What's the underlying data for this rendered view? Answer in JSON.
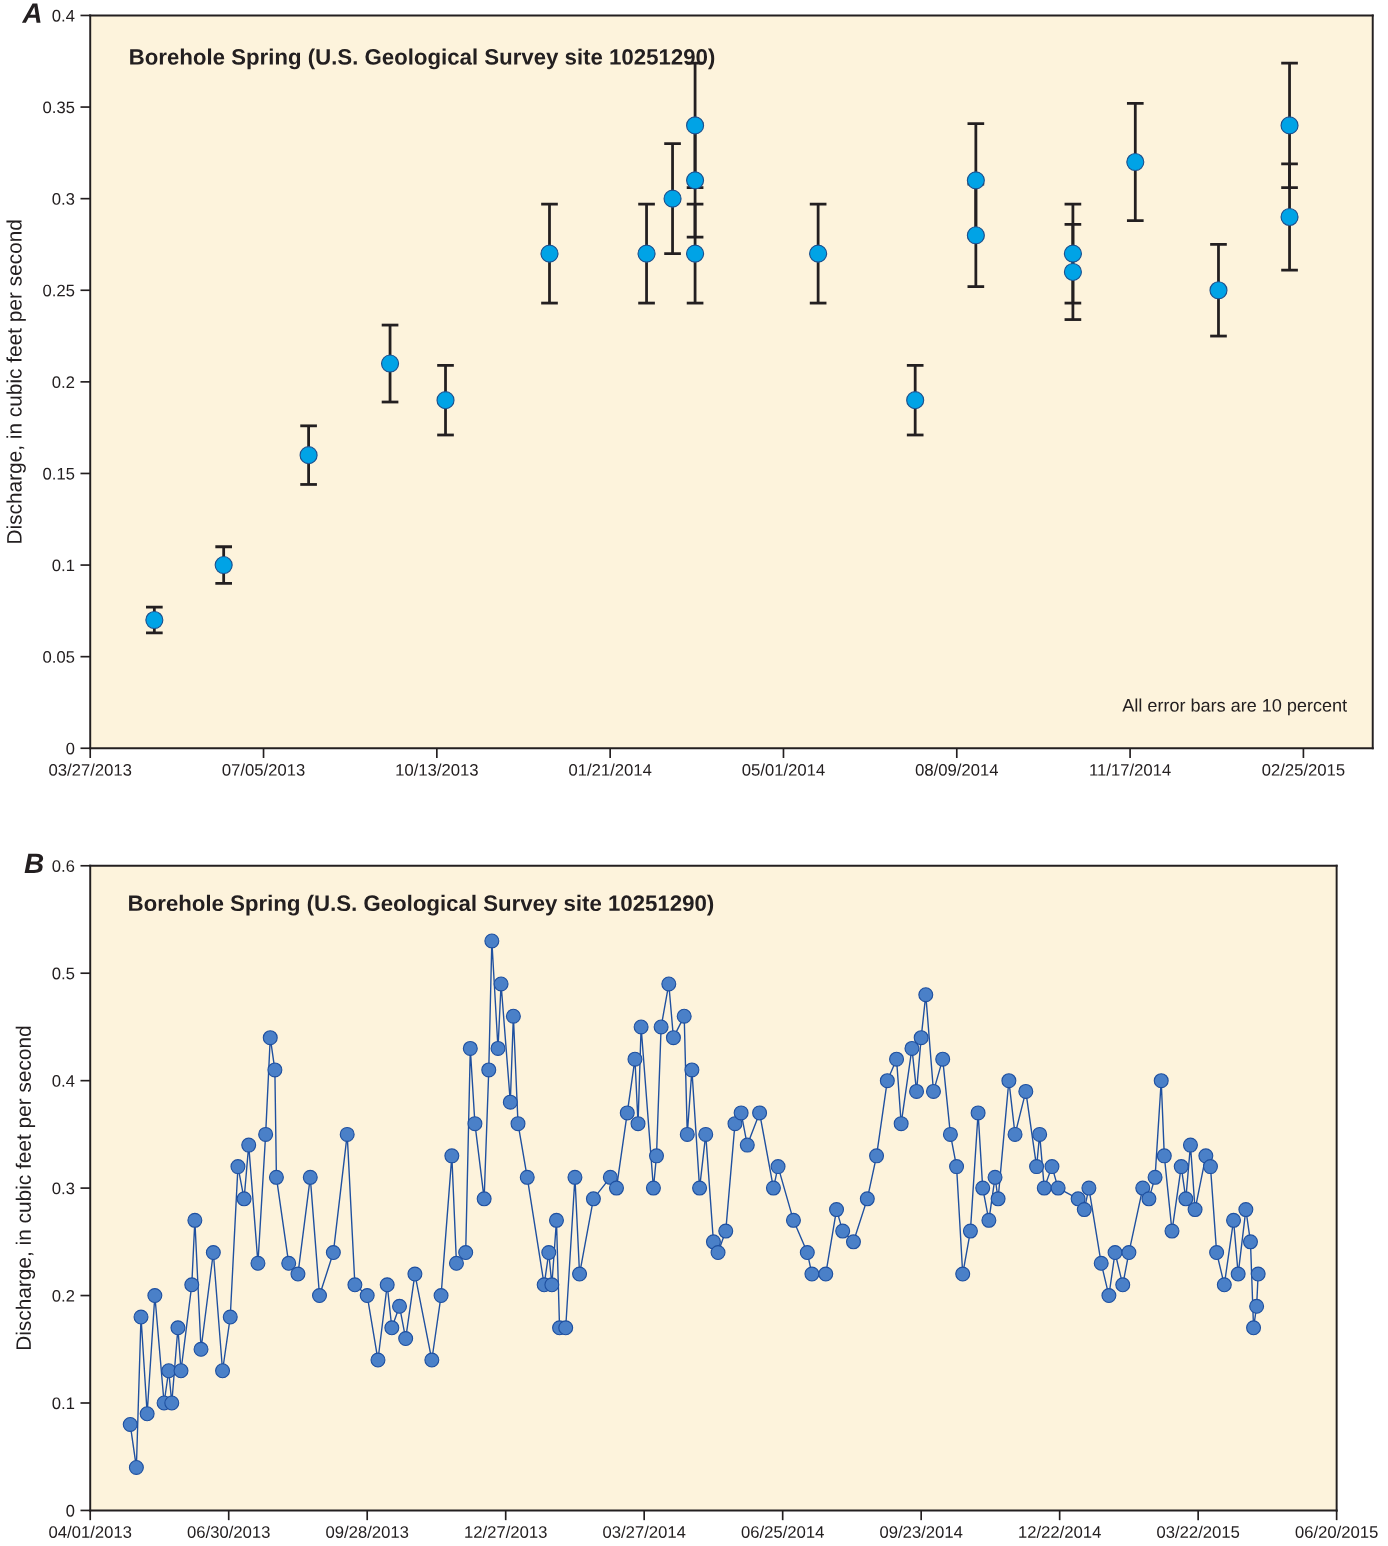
{
  "chart_data": [
    {
      "type": "scatter",
      "title": "Borehole Spring (U.S. Geological Survey site 10251290)",
      "ylabel": "Discharge, in cubic feet per second",
      "annotations": [
        "A",
        "All error bars are 10 percent"
      ],
      "x": [
        "2013-05-03",
        "2013-06-12",
        "2013-07-31",
        "2013-09-16",
        "2013-10-18",
        "2013-12-17",
        "2014-02-11",
        "2014-02-26",
        "2014-03-11",
        "2014-03-11",
        "2014-03-11",
        "2014-05-21",
        "2014-07-16",
        "2014-08-20",
        "2014-08-20",
        "2014-10-15",
        "2014-10-15",
        "2014-11-20",
        "2015-01-07",
        "2015-02-17",
        "2015-02-17"
      ],
      "values": [
        0.07,
        0.1,
        0.16,
        0.21,
        0.19,
        0.27,
        0.27,
        0.3,
        0.34,
        0.31,
        0.27,
        0.27,
        0.19,
        0.31,
        0.28,
        0.27,
        0.26,
        0.32,
        0.25,
        0.34,
        0.29
      ],
      "errors": [
        0.007,
        0.01,
        0.016,
        0.021,
        0.019,
        0.027,
        0.027,
        0.03,
        0.034,
        0.031,
        0.027,
        0.027,
        0.019,
        0.031,
        0.028,
        0.027,
        0.026,
        0.032,
        0.025,
        0.034,
        0.029
      ],
      "color": "#00a3e6",
      "marker": "circle",
      "xlim": [
        "2013-03-27",
        "2015-04-06"
      ],
      "xticks": [
        {
          "value": "2013-03-27",
          "label": "03/27/2013"
        },
        {
          "value": "2013-07-05",
          "label": "07/05/2013"
        },
        {
          "value": "2013-10-13",
          "label": "10/13/2013"
        },
        {
          "value": "2014-01-21",
          "label": "01/21/2014"
        },
        {
          "value": "2014-05-01",
          "label": "05/01/2014"
        },
        {
          "value": "2014-08-09",
          "label": "08/09/2014"
        },
        {
          "value": "2014-11-17",
          "label": "11/17/2014"
        },
        {
          "value": "2015-02-25",
          "label": "02/25/2015"
        }
      ],
      "ylim": [
        0,
        0.4
      ],
      "yticks": [
        0,
        0.05,
        0.1,
        0.15,
        0.2,
        0.25,
        0.3,
        0.35,
        0.4
      ]
    },
    {
      "type": "line",
      "title": "Borehole Spring (U.S. Geological Survey site 10251290)",
      "ylabel": "Discharge, in cubic feet per second",
      "annotations": [
        "B"
      ],
      "x": [
        "2013-04-27",
        "2013-05-01",
        "2013-05-04",
        "2013-05-08",
        "2013-05-13",
        "2013-05-19",
        "2013-05-22",
        "2013-05-24",
        "2013-05-28",
        "2013-05-30",
        "2013-06-06",
        "2013-06-08",
        "2013-06-12",
        "2013-06-20",
        "2013-06-26",
        "2013-07-01",
        "2013-07-06",
        "2013-07-10",
        "2013-07-13",
        "2013-07-19",
        "2013-07-24",
        "2013-07-27",
        "2013-07-30",
        "2013-07-31",
        "2013-08-08",
        "2013-08-14",
        "2013-08-22",
        "2013-08-28",
        "2013-09-06",
        "2013-09-15",
        "2013-09-20",
        "2013-09-28",
        "2013-10-05",
        "2013-10-11",
        "2013-10-14",
        "2013-10-19",
        "2013-10-23",
        "2013-10-29",
        "2013-11-09",
        "2013-11-15",
        "2013-11-22",
        "2013-11-25",
        "2013-12-01",
        "2013-12-04",
        "2013-12-07",
        "2013-12-13",
        "2013-12-16",
        "2013-12-18",
        "2013-12-22",
        "2013-12-24",
        "2013-12-30",
        "2014-01-01",
        "2014-01-04",
        "2014-01-10",
        "2014-01-21",
        "2014-01-24",
        "2014-01-26",
        "2014-01-29",
        "2014-01-31",
        "2014-02-04",
        "2014-02-10",
        "2014-02-13",
        "2014-02-22",
        "2014-03-05",
        "2014-03-09",
        "2014-03-16",
        "2014-03-21",
        "2014-03-23",
        "2014-03-25",
        "2014-04-02",
        "2014-04-04",
        "2014-04-07",
        "2014-04-12",
        "2014-04-15",
        "2014-04-22",
        "2014-04-24",
        "2014-04-27",
        "2014-05-02",
        "2014-05-06",
        "2014-05-11",
        "2014-05-14",
        "2014-05-19",
        "2014-05-25",
        "2014-05-29",
        "2014-06-02",
        "2014-06-10",
        "2014-06-19",
        "2014-06-22",
        "2014-07-02",
        "2014-07-11",
        "2014-07-14",
        "2014-07-23",
        "2014-07-30",
        "2014-08-03",
        "2014-08-10",
        "2014-08-19",
        "2014-08-25",
        "2014-09-01",
        "2014-09-07",
        "2014-09-10",
        "2014-09-17",
        "2014-09-20",
        "2014-09-23",
        "2014-09-26",
        "2014-10-01",
        "2014-10-07",
        "2014-10-12",
        "2014-10-16",
        "2014-10-20",
        "2014-10-25",
        "2014-10-30",
        "2014-11-02",
        "2014-11-06",
        "2014-11-10",
        "2014-11-12",
        "2014-11-19",
        "2014-11-23",
        "2014-11-30",
        "2014-12-07",
        "2014-12-09",
        "2014-12-12",
        "2014-12-17",
        "2014-12-21",
        "2015-01-03",
        "2015-01-07",
        "2015-01-10",
        "2015-01-18",
        "2015-01-23",
        "2015-01-27",
        "2015-02-01",
        "2015-02-05",
        "2015-02-14",
        "2015-02-18",
        "2015-02-22",
        "2015-02-26",
        "2015-02-28",
        "2015-03-05",
        "2015-03-11",
        "2015-03-14",
        "2015-03-17",
        "2015-03-20",
        "2015-03-27",
        "2015-03-30",
        "2015-04-03",
        "2015-04-08",
        "2015-04-14",
        "2015-04-17",
        "2015-04-22",
        "2015-04-25",
        "2015-04-27",
        "2015-04-29",
        "2015-04-30"
      ],
      "values": [
        0.08,
        0.04,
        0.18,
        0.09,
        0.2,
        0.1,
        0.13,
        0.1,
        0.17,
        0.13,
        0.21,
        0.27,
        0.15,
        0.24,
        0.13,
        0.18,
        0.32,
        0.29,
        0.34,
        0.23,
        0.35,
        0.44,
        0.41,
        0.31,
        0.23,
        0.22,
        0.31,
        0.2,
        0.24,
        0.35,
        0.21,
        0.2,
        0.14,
        0.21,
        0.17,
        0.19,
        0.16,
        0.22,
        0.14,
        0.2,
        0.33,
        0.23,
        0.24,
        0.43,
        0.36,
        0.29,
        0.41,
        0.53,
        0.43,
        0.49,
        0.38,
        0.46,
        0.36,
        0.31,
        0.21,
        0.24,
        0.21,
        0.27,
        0.17,
        0.17,
        0.31,
        0.22,
        0.29,
        0.31,
        0.3,
        0.37,
        0.42,
        0.36,
        0.45,
        0.3,
        0.33,
        0.45,
        0.49,
        0.44,
        0.46,
        0.35,
        0.41,
        0.3,
        0.35,
        0.25,
        0.24,
        0.26,
        0.36,
        0.37,
        0.34,
        0.37,
        0.3,
        0.32,
        0.27,
        0.24,
        0.22,
        0.22,
        0.28,
        0.26,
        0.25,
        0.29,
        0.33,
        0.4,
        0.42,
        0.36,
        0.43,
        0.39,
        0.44,
        0.48,
        0.39,
        0.42,
        0.35,
        0.32,
        0.22,
        0.26,
        0.37,
        0.3,
        0.27,
        0.31,
        0.29,
        0.4,
        0.35,
        0.39,
        0.32,
        0.35,
        0.3,
        0.32,
        0.3,
        0.29,
        0.28,
        0.3,
        0.23,
        0.2,
        0.24,
        0.21,
        0.24,
        0.3,
        0.29,
        0.31,
        0.4,
        0.33,
        0.26,
        0.32,
        0.29,
        0.34,
        0.28,
        0.33,
        0.32,
        0.24,
        0.21,
        0.27,
        0.22,
        0.28,
        0.25,
        0.17,
        0.19,
        0.22
      ],
      "color": "#4a80c8",
      "marker": "circle",
      "line_style": "solid",
      "xlim": [
        "2013-04-01",
        "2015-06-20"
      ],
      "xticks": [
        {
          "value": "2013-04-01",
          "label": "04/01/2013"
        },
        {
          "value": "2013-06-30",
          "label": "06/30/2013"
        },
        {
          "value": "2013-09-28",
          "label": "09/28/2013"
        },
        {
          "value": "2013-12-27",
          "label": "12/27/2013"
        },
        {
          "value": "2014-03-27",
          "label": "03/27/2014"
        },
        {
          "value": "2014-06-25",
          "label": "06/25/2014"
        },
        {
          "value": "2014-09-23",
          "label": "09/23/2014"
        },
        {
          "value": "2014-12-22",
          "label": "12/22/2014"
        },
        {
          "value": "2015-03-22",
          "label": "03/22/2015"
        },
        {
          "value": "2015-06-20",
          "label": "06/20/2015"
        }
      ],
      "ylim": [
        0,
        0.6
      ],
      "yticks": [
        0,
        0.1,
        0.2,
        0.3,
        0.4,
        0.5,
        0.6
      ]
    }
  ]
}
